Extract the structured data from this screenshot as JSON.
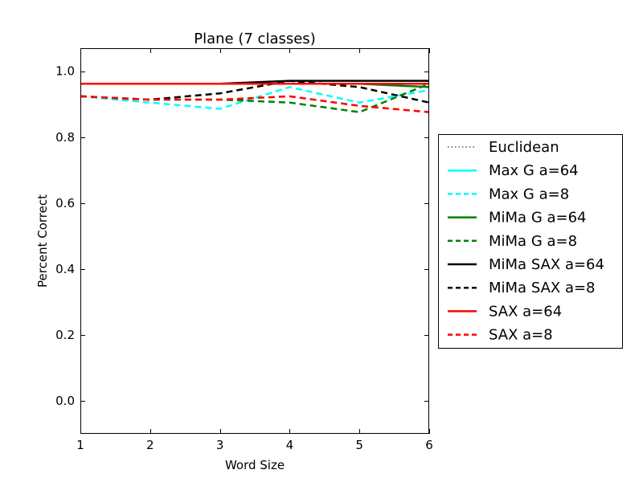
{
  "chart_data": {
    "type": "line",
    "title": "Plane (7 classes)",
    "xlabel": "Word Size",
    "ylabel": "Percent Correct",
    "xlim": [
      1,
      6
    ],
    "ylim": [
      -0.1,
      1.07
    ],
    "xticks": [
      1,
      2,
      3,
      4,
      5,
      6
    ],
    "yticks": [
      0.0,
      0.2,
      0.4,
      0.6,
      0.8,
      1.0
    ],
    "ytick_labels": [
      "0.0",
      "0.2",
      "0.4",
      "0.6",
      "0.8",
      "1.0"
    ],
    "grid": false,
    "legend_position": "outside-right",
    "x": [
      1,
      2,
      3,
      4,
      5,
      6
    ],
    "series": [
      {
        "name": "Euclidean",
        "color": "#000000",
        "style": "dotted",
        "values": [
          0.962,
          0.962,
          0.962,
          0.962,
          0.962,
          0.962
        ]
      },
      {
        "name": "Max G a=64",
        "color": "#00ffff",
        "style": "solid",
        "values": [
          0.962,
          0.962,
          0.962,
          0.962,
          0.962,
          0.962
        ]
      },
      {
        "name": "Max G a=8",
        "color": "#00ffff",
        "style": "dashed",
        "values": [
          0.924,
          0.905,
          0.886,
          0.952,
          0.905,
          0.943
        ]
      },
      {
        "name": "MiMa G a=64",
        "color": "#008000",
        "style": "solid",
        "values": [
          0.962,
          0.962,
          0.962,
          0.962,
          0.962,
          0.952
        ]
      },
      {
        "name": "MiMa G a=8",
        "color": "#008000",
        "style": "dashed",
        "values": [
          0.924,
          0.914,
          0.914,
          0.905,
          0.876,
          0.962
        ]
      },
      {
        "name": "MiMa SAX a=64",
        "color": "#000000",
        "style": "solid",
        "values": [
          0.962,
          0.962,
          0.962,
          0.971,
          0.971,
          0.971
        ]
      },
      {
        "name": "MiMa SAX a=8",
        "color": "#000000",
        "style": "dashed",
        "values": [
          0.924,
          0.914,
          0.933,
          0.971,
          0.952,
          0.905
        ]
      },
      {
        "name": "SAX a=64",
        "color": "#ff0000",
        "style": "solid",
        "values": [
          0.962,
          0.962,
          0.962,
          0.962,
          0.962,
          0.962
        ]
      },
      {
        "name": "SAX a=8",
        "color": "#ff0000",
        "style": "dashed",
        "values": [
          0.924,
          0.914,
          0.914,
          0.924,
          0.895,
          0.876
        ]
      }
    ]
  }
}
